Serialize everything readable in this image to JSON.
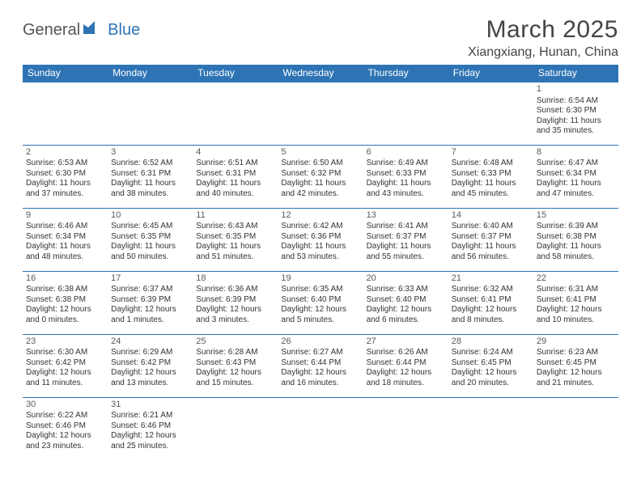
{
  "brand": {
    "part1": "General",
    "part2": "Blue"
  },
  "title": "March 2025",
  "location": "Xiangxiang, Hunan, China",
  "colors": {
    "accent": "#2e74b5",
    "text": "#333333",
    "bg": "#ffffff",
    "headerText": "#ffffff"
  },
  "weekdays": [
    "Sunday",
    "Monday",
    "Tuesday",
    "Wednesday",
    "Thursday",
    "Friday",
    "Saturday"
  ],
  "weeks": [
    [
      null,
      null,
      null,
      null,
      null,
      null,
      {
        "n": "1",
        "sunrise": "6:54 AM",
        "sunset": "6:30 PM",
        "dlh": "11",
        "dlm": "35"
      }
    ],
    [
      {
        "n": "2",
        "sunrise": "6:53 AM",
        "sunset": "6:30 PM",
        "dlh": "11",
        "dlm": "37"
      },
      {
        "n": "3",
        "sunrise": "6:52 AM",
        "sunset": "6:31 PM",
        "dlh": "11",
        "dlm": "38"
      },
      {
        "n": "4",
        "sunrise": "6:51 AM",
        "sunset": "6:31 PM",
        "dlh": "11",
        "dlm": "40"
      },
      {
        "n": "5",
        "sunrise": "6:50 AM",
        "sunset": "6:32 PM",
        "dlh": "11",
        "dlm": "42"
      },
      {
        "n": "6",
        "sunrise": "6:49 AM",
        "sunset": "6:33 PM",
        "dlh": "11",
        "dlm": "43"
      },
      {
        "n": "7",
        "sunrise": "6:48 AM",
        "sunset": "6:33 PM",
        "dlh": "11",
        "dlm": "45"
      },
      {
        "n": "8",
        "sunrise": "6:47 AM",
        "sunset": "6:34 PM",
        "dlh": "11",
        "dlm": "47"
      }
    ],
    [
      {
        "n": "9",
        "sunrise": "6:46 AM",
        "sunset": "6:34 PM",
        "dlh": "11",
        "dlm": "48"
      },
      {
        "n": "10",
        "sunrise": "6:45 AM",
        "sunset": "6:35 PM",
        "dlh": "11",
        "dlm": "50"
      },
      {
        "n": "11",
        "sunrise": "6:43 AM",
        "sunset": "6:35 PM",
        "dlh": "11",
        "dlm": "51"
      },
      {
        "n": "12",
        "sunrise": "6:42 AM",
        "sunset": "6:36 PM",
        "dlh": "11",
        "dlm": "53"
      },
      {
        "n": "13",
        "sunrise": "6:41 AM",
        "sunset": "6:37 PM",
        "dlh": "11",
        "dlm": "55"
      },
      {
        "n": "14",
        "sunrise": "6:40 AM",
        "sunset": "6:37 PM",
        "dlh": "11",
        "dlm": "56"
      },
      {
        "n": "15",
        "sunrise": "6:39 AM",
        "sunset": "6:38 PM",
        "dlh": "11",
        "dlm": "58"
      }
    ],
    [
      {
        "n": "16",
        "sunrise": "6:38 AM",
        "sunset": "6:38 PM",
        "dlh": "12",
        "dlm": "0"
      },
      {
        "n": "17",
        "sunrise": "6:37 AM",
        "sunset": "6:39 PM",
        "dlh": "12",
        "dlm": "1"
      },
      {
        "n": "18",
        "sunrise": "6:36 AM",
        "sunset": "6:39 PM",
        "dlh": "12",
        "dlm": "3"
      },
      {
        "n": "19",
        "sunrise": "6:35 AM",
        "sunset": "6:40 PM",
        "dlh": "12",
        "dlm": "5"
      },
      {
        "n": "20",
        "sunrise": "6:33 AM",
        "sunset": "6:40 PM",
        "dlh": "12",
        "dlm": "6"
      },
      {
        "n": "21",
        "sunrise": "6:32 AM",
        "sunset": "6:41 PM",
        "dlh": "12",
        "dlm": "8"
      },
      {
        "n": "22",
        "sunrise": "6:31 AM",
        "sunset": "6:41 PM",
        "dlh": "12",
        "dlm": "10"
      }
    ],
    [
      {
        "n": "23",
        "sunrise": "6:30 AM",
        "sunset": "6:42 PM",
        "dlh": "12",
        "dlm": "11"
      },
      {
        "n": "24",
        "sunrise": "6:29 AM",
        "sunset": "6:42 PM",
        "dlh": "12",
        "dlm": "13"
      },
      {
        "n": "25",
        "sunrise": "6:28 AM",
        "sunset": "6:43 PM",
        "dlh": "12",
        "dlm": "15"
      },
      {
        "n": "26",
        "sunrise": "6:27 AM",
        "sunset": "6:44 PM",
        "dlh": "12",
        "dlm": "16"
      },
      {
        "n": "27",
        "sunrise": "6:26 AM",
        "sunset": "6:44 PM",
        "dlh": "12",
        "dlm": "18"
      },
      {
        "n": "28",
        "sunrise": "6:24 AM",
        "sunset": "6:45 PM",
        "dlh": "12",
        "dlm": "20"
      },
      {
        "n": "29",
        "sunrise": "6:23 AM",
        "sunset": "6:45 PM",
        "dlh": "12",
        "dlm": "21"
      }
    ],
    [
      {
        "n": "30",
        "sunrise": "6:22 AM",
        "sunset": "6:46 PM",
        "dlh": "12",
        "dlm": "23"
      },
      {
        "n": "31",
        "sunrise": "6:21 AM",
        "sunset": "6:46 PM",
        "dlh": "12",
        "dlm": "25"
      },
      null,
      null,
      null,
      null,
      null
    ]
  ],
  "labels": {
    "sunrise": "Sunrise: ",
    "sunset": "Sunset: ",
    "daylight1": "Daylight: ",
    "daylight2": " hours and ",
    "daylight3": " minutes."
  }
}
